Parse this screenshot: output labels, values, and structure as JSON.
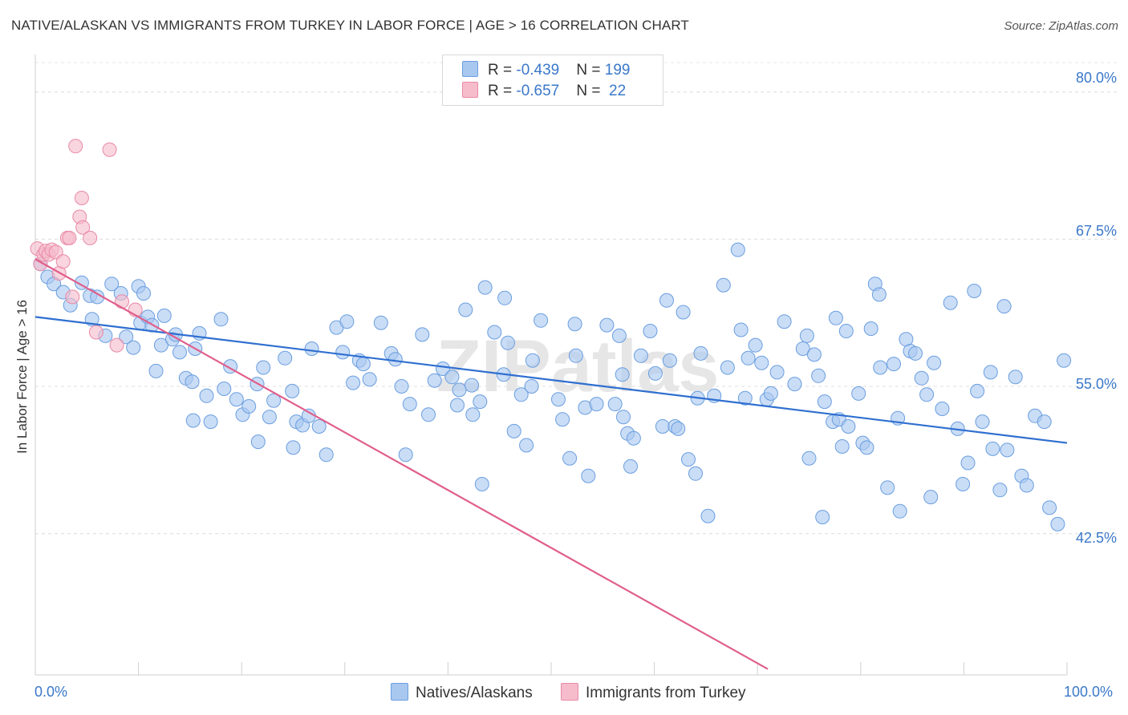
{
  "title": "NATIVE/ALASKAN VS IMMIGRANTS FROM TURKEY IN LABOR FORCE | AGE > 16 CORRELATION CHART",
  "source": "Source: ZipAtlas.com",
  "watermark": "ZIPatlas",
  "legend_top": {
    "rows": [
      {
        "r_label": "R = ",
        "r_value": "-0.439",
        "n_label": "N = ",
        "n_value": "199",
        "color": "#a9c8f0"
      },
      {
        "r_label": "R = ",
        "r_value": "-0.657",
        "n_label": "N = ",
        "n_value": " 22",
        "color": "#f6bccb"
      }
    ]
  },
  "bottom_legend": {
    "items": [
      {
        "label": "Natives/Alaskans",
        "color": "#a9c8f0"
      },
      {
        "label": "Immigrants from Turkey",
        "color": "#f6bccb"
      }
    ]
  },
  "x_tick_labels": {
    "left": "0.0%",
    "right": "100.0%"
  },
  "y_tick_labels": [
    "80.0%",
    "67.5%",
    "55.0%",
    "42.5%"
  ],
  "chart_data": {
    "type": "scatter",
    "title": "NATIVE/ALASKAN VS IMMIGRANTS FROM TURKEY IN LABOR FORCE | AGE > 16 CORRELATION CHART",
    "xlabel": "",
    "ylabel": "In Labor Force | Age > 16",
    "xlim": [
      0,
      100
    ],
    "ylim": [
      30.5,
      82.5
    ],
    "yticks": [
      42.5,
      55.0,
      67.5,
      80.0
    ],
    "grid": "horizontal dashed",
    "legend_position": "top-center",
    "series": [
      {
        "name": "Natives/Alaskans",
        "color": "#6a9ee0",
        "fill": "#a9c8f0",
        "r": -0.439,
        "n": 199,
        "trend": {
          "x": [
            0,
            100
          ],
          "y": [
            60.9,
            50.2
          ]
        },
        "points": [
          [
            0.5,
            65.4
          ],
          [
            1.2,
            64.3
          ],
          [
            1.8,
            63.7
          ],
          [
            2.7,
            63.0
          ],
          [
            3.4,
            61.9
          ],
          [
            4.5,
            63.8
          ],
          [
            5.3,
            62.7
          ],
          [
            5.5,
            60.7
          ],
          [
            6.0,
            62.6
          ],
          [
            6.8,
            59.3
          ],
          [
            7.4,
            63.7
          ],
          [
            8.3,
            62.9
          ],
          [
            8.8,
            59.2
          ],
          [
            9.5,
            58.3
          ],
          [
            10.0,
            63.5
          ],
          [
            10.2,
            60.4
          ],
          [
            10.5,
            62.9
          ],
          [
            10.9,
            60.9
          ],
          [
            11.3,
            60.2
          ],
          [
            11.7,
            56.3
          ],
          [
            12.2,
            58.5
          ],
          [
            12.5,
            61.0
          ],
          [
            13.3,
            59.0
          ],
          [
            13.6,
            59.4
          ],
          [
            14.0,
            57.9
          ],
          [
            14.6,
            55.7
          ],
          [
            15.2,
            55.4
          ],
          [
            15.3,
            52.1
          ],
          [
            15.5,
            58.2
          ],
          [
            15.9,
            59.5
          ],
          [
            16.6,
            54.2
          ],
          [
            17.0,
            52.0
          ],
          [
            18.0,
            60.7
          ],
          [
            18.3,
            54.8
          ],
          [
            18.9,
            56.7
          ],
          [
            19.5,
            53.9
          ],
          [
            20.1,
            52.6
          ],
          [
            20.7,
            53.3
          ],
          [
            21.5,
            55.2
          ],
          [
            21.6,
            50.3
          ],
          [
            22.1,
            56.6
          ],
          [
            22.7,
            52.4
          ],
          [
            23.1,
            53.8
          ],
          [
            24.2,
            57.4
          ],
          [
            24.9,
            54.6
          ],
          [
            25.0,
            49.8
          ],
          [
            25.3,
            52.0
          ],
          [
            25.9,
            51.7
          ],
          [
            26.5,
            52.5
          ],
          [
            26.8,
            58.2
          ],
          [
            27.5,
            51.6
          ],
          [
            28.2,
            49.2
          ],
          [
            29.2,
            60.0
          ],
          [
            29.8,
            57.9
          ],
          [
            30.2,
            60.5
          ],
          [
            30.8,
            55.3
          ],
          [
            31.4,
            57.2
          ],
          [
            31.8,
            56.9
          ],
          [
            32.4,
            55.6
          ],
          [
            33.5,
            60.4
          ],
          [
            34.5,
            57.8
          ],
          [
            34.9,
            57.3
          ],
          [
            35.5,
            55.0
          ],
          [
            35.9,
            49.2
          ],
          [
            36.3,
            53.5
          ],
          [
            37.5,
            59.4
          ],
          [
            38.1,
            52.6
          ],
          [
            38.7,
            55.5
          ],
          [
            39.5,
            56.5
          ],
          [
            40.4,
            55.8
          ],
          [
            40.9,
            53.4
          ],
          [
            41.1,
            54.7
          ],
          [
            41.7,
            61.5
          ],
          [
            42.3,
            55.1
          ],
          [
            42.4,
            52.6
          ],
          [
            43.1,
            53.7
          ],
          [
            43.3,
            46.7
          ],
          [
            43.6,
            63.4
          ],
          [
            44.5,
            59.6
          ],
          [
            45.4,
            56.0
          ],
          [
            45.5,
            62.5
          ],
          [
            45.8,
            58.7
          ],
          [
            46.4,
            51.2
          ],
          [
            47.1,
            54.3
          ],
          [
            47.6,
            50.0
          ],
          [
            48.1,
            55.0
          ],
          [
            48.2,
            57.2
          ],
          [
            49.0,
            60.6
          ],
          [
            50.7,
            53.9
          ],
          [
            51.1,
            52.2
          ],
          [
            51.8,
            48.9
          ],
          [
            52.3,
            60.3
          ],
          [
            52.4,
            57.6
          ],
          [
            53.3,
            53.2
          ],
          [
            53.6,
            47.4
          ],
          [
            54.4,
            53.5
          ],
          [
            55.4,
            60.2
          ],
          [
            56.2,
            53.5
          ],
          [
            56.6,
            59.3
          ],
          [
            56.9,
            56.0
          ],
          [
            57.0,
            52.4
          ],
          [
            57.4,
            51.0
          ],
          [
            57.7,
            48.2
          ],
          [
            58.0,
            50.6
          ],
          [
            58.7,
            57.6
          ],
          [
            59.6,
            59.7
          ],
          [
            60.1,
            56.1
          ],
          [
            60.8,
            51.6
          ],
          [
            61.2,
            62.3
          ],
          [
            61.5,
            57.2
          ],
          [
            62.0,
            51.6
          ],
          [
            62.3,
            51.4
          ],
          [
            62.8,
            61.3
          ],
          [
            63.3,
            48.8
          ],
          [
            64.0,
            47.6
          ],
          [
            64.2,
            54.0
          ],
          [
            64.5,
            57.8
          ],
          [
            65.2,
            44.0
          ],
          [
            65.8,
            54.2
          ],
          [
            66.7,
            63.6
          ],
          [
            67.1,
            56.6
          ],
          [
            68.1,
            66.6
          ],
          [
            68.4,
            59.8
          ],
          [
            68.8,
            54.0
          ],
          [
            69.1,
            57.4
          ],
          [
            69.8,
            58.5
          ],
          [
            70.4,
            57.0
          ],
          [
            70.9,
            53.9
          ],
          [
            71.3,
            54.4
          ],
          [
            71.9,
            56.2
          ],
          [
            72.6,
            60.5
          ],
          [
            73.6,
            55.2
          ],
          [
            74.4,
            58.2
          ],
          [
            74.8,
            59.3
          ],
          [
            75.0,
            48.9
          ],
          [
            75.5,
            57.7
          ],
          [
            75.9,
            55.9
          ],
          [
            76.3,
            43.9
          ],
          [
            76.5,
            53.7
          ],
          [
            77.3,
            52.0
          ],
          [
            77.6,
            60.8
          ],
          [
            77.9,
            52.2
          ],
          [
            78.2,
            49.9
          ],
          [
            78.6,
            59.7
          ],
          [
            78.8,
            51.6
          ],
          [
            79.8,
            54.4
          ],
          [
            80.2,
            50.2
          ],
          [
            80.6,
            49.8
          ],
          [
            81.0,
            59.9
          ],
          [
            81.4,
            63.7
          ],
          [
            81.8,
            62.8
          ],
          [
            81.9,
            56.6
          ],
          [
            82.6,
            46.4
          ],
          [
            83.2,
            56.9
          ],
          [
            83.6,
            52.3
          ],
          [
            83.8,
            44.4
          ],
          [
            84.4,
            59.0
          ],
          [
            84.8,
            58.0
          ],
          [
            85.3,
            57.8
          ],
          [
            85.9,
            55.7
          ],
          [
            86.4,
            54.3
          ],
          [
            86.8,
            45.6
          ],
          [
            87.1,
            57.0
          ],
          [
            87.9,
            53.1
          ],
          [
            88.7,
            62.1
          ],
          [
            89.4,
            51.4
          ],
          [
            89.9,
            46.7
          ],
          [
            90.4,
            48.5
          ],
          [
            91.0,
            63.1
          ],
          [
            91.3,
            54.6
          ],
          [
            91.8,
            52.0
          ],
          [
            92.6,
            56.2
          ],
          [
            92.8,
            49.7
          ],
          [
            93.5,
            46.2
          ],
          [
            93.9,
            61.8
          ],
          [
            94.2,
            49.6
          ],
          [
            95.0,
            55.8
          ],
          [
            95.6,
            47.4
          ],
          [
            96.1,
            46.6
          ],
          [
            96.9,
            52.5
          ],
          [
            97.8,
            52.0
          ],
          [
            98.3,
            44.7
          ],
          [
            99.1,
            43.3
          ],
          [
            99.7,
            57.2
          ]
        ]
      },
      {
        "name": "Immigrants from Turkey",
        "color": "#e88aa7",
        "fill": "#f6bccb",
        "r": -0.657,
        "n": 22,
        "trend": {
          "x": [
            0,
            71
          ],
          "y": [
            65.8,
            31.0
          ]
        },
        "points": [
          [
            0.2,
            66.7
          ],
          [
            0.5,
            65.4
          ],
          [
            0.8,
            66.2
          ],
          [
            1.0,
            66.5
          ],
          [
            1.3,
            66.2
          ],
          [
            1.6,
            66.6
          ],
          [
            2.0,
            66.4
          ],
          [
            2.3,
            64.6
          ],
          [
            2.7,
            65.6
          ],
          [
            3.1,
            67.6
          ],
          [
            3.3,
            67.6
          ],
          [
            3.6,
            62.6
          ],
          [
            3.9,
            75.4
          ],
          [
            4.3,
            69.4
          ],
          [
            4.5,
            71.0
          ],
          [
            4.6,
            68.5
          ],
          [
            5.3,
            67.6
          ],
          [
            5.9,
            59.6
          ],
          [
            7.2,
            75.1
          ],
          [
            7.9,
            58.5
          ],
          [
            8.4,
            62.2
          ],
          [
            9.7,
            61.5
          ]
        ]
      }
    ]
  }
}
